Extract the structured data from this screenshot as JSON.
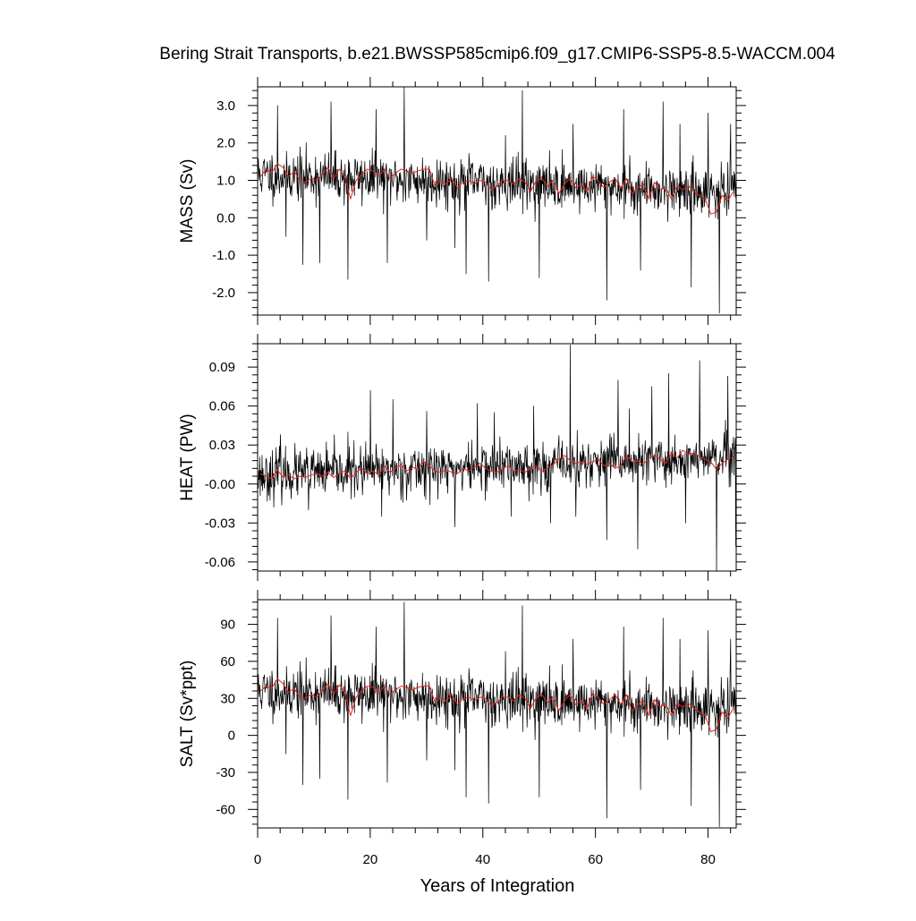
{
  "figure": {
    "title": "Bering Strait Transports, b.e21.BWSSP585cmip6.f09_g17.CMIP6-SSP5-8.5-WACCM.004",
    "xlabel": "Years of Integration"
  },
  "colors": {
    "raw_series": "#000000",
    "annual_mean_series": "#e8231f",
    "axes": "#000000",
    "background": "#ffffff"
  },
  "chart_data": [
    {
      "type": "line",
      "title": "",
      "ylabel": "MASS (Sv)",
      "xlabel": "",
      "xlim": [
        0,
        85
      ],
      "ylim": [
        -2.6,
        3.5
      ],
      "xticks": [
        0,
        20,
        40,
        60,
        80
      ],
      "xtick_labels": [
        "0",
        "20",
        "40",
        "60",
        "80"
      ],
      "yticks": [
        -2.0,
        -1.0,
        0.0,
        1.0,
        2.0,
        3.0
      ],
      "ytick_labels": [
        "-2.0",
        "-1.0",
        "0.0",
        "1.0",
        "2.0",
        "3.0"
      ],
      "grid": false,
      "series": [
        {
          "kind": "monthly",
          "color": "#000000",
          "x_start": 0.0417,
          "x_step": 0.0833,
          "mean_trend": [
            1.15,
            0.7
          ],
          "spread": 0.6,
          "spikes": [
            [
              3.5,
              3.0
            ],
            [
              5.0,
              -0.5
            ],
            [
              8.0,
              -1.25
            ],
            [
              11.0,
              -1.2
            ],
            [
              13.0,
              3.1
            ],
            [
              16.0,
              -1.65
            ],
            [
              21.0,
              2.9
            ],
            [
              23.0,
              -1.2
            ],
            [
              26.0,
              3.5
            ],
            [
              30.0,
              -0.6
            ],
            [
              35.0,
              -0.8
            ],
            [
              37.0,
              -1.5
            ],
            [
              41.0,
              -1.7
            ],
            [
              44.0,
              2.2
            ],
            [
              47.0,
              3.4
            ],
            [
              50.0,
              -1.6
            ],
            [
              56.0,
              2.5
            ],
            [
              62.0,
              -2.2
            ],
            [
              65.0,
              2.9
            ],
            [
              68.0,
              -1.4
            ],
            [
              72.0,
              3.1
            ],
            [
              75.0,
              2.5
            ],
            [
              77.0,
              -1.85
            ],
            [
              80.0,
              2.8
            ],
            [
              82.0,
              -2.55
            ],
            [
              84.0,
              2.5
            ]
          ],
          "seed": 11
        },
        {
          "kind": "annual_mean",
          "color": "#e8231f",
          "x": [
            0.5,
            1.5,
            2.5,
            3.5,
            4.5,
            5.5,
            6.5,
            7.5,
            8.5,
            9.5,
            10.5,
            11.5,
            12.5,
            13.5,
            14.5,
            15.5,
            16.5,
            17.5,
            18.5,
            19.5,
            20.5,
            21.5,
            22.5,
            23.5,
            24.5,
            25.5,
            26.5,
            27.5,
            28.5,
            29.5,
            30.5,
            31.5,
            32.5,
            33.5,
            34.5,
            35.5,
            36.5,
            37.5,
            38.5,
            39.5,
            40.5,
            41.5,
            42.5,
            43.5,
            44.5,
            45.5,
            46.5,
            47.5,
            48.5,
            49.5,
            50.5,
            51.5,
            52.5,
            53.5,
            54.5,
            55.5,
            56.5,
            57.5,
            58.5,
            59.5,
            60.5,
            61.5,
            62.5,
            63.5,
            64.5,
            65.5,
            66.5,
            67.5,
            68.5,
            69.5,
            70.5,
            71.5,
            72.5,
            73.5,
            74.5,
            75.5,
            76.5,
            77.5,
            78.5,
            79.5,
            80.5,
            81.5,
            82.5,
            83.5,
            84.5
          ],
          "values": [
            1.1,
            1.3,
            1.2,
            1.45,
            1.35,
            1.1,
            1.25,
            1.0,
            0.95,
            1.05,
            1.0,
            1.15,
            1.35,
            1.05,
            1.3,
            1.1,
            0.5,
            1.0,
            1.15,
            1.3,
            1.25,
            1.1,
            1.3,
            1.05,
            1.2,
            1.3,
            1.25,
            1.2,
            1.25,
            1.3,
            1.3,
            0.85,
            1.0,
            0.9,
            1.05,
            0.8,
            0.95,
            1.0,
            0.9,
            1.0,
            0.95,
            0.75,
            0.85,
            1.0,
            1.0,
            0.9,
            1.05,
            0.95,
            0.7,
            1.0,
            1.05,
            0.85,
            1.0,
            0.65,
            0.9,
            1.05,
            0.8,
            0.9,
            0.7,
            1.1,
            1.0,
            0.8,
            0.95,
            1.05,
            0.8,
            1.05,
            0.65,
            0.8,
            0.9,
            0.5,
            0.95,
            0.75,
            0.8,
            0.5,
            0.85,
            0.75,
            0.85,
            0.7,
            0.6,
            0.5,
            0.1,
            0.15,
            0.6,
            0.45,
            0.7
          ]
        }
      ]
    },
    {
      "type": "line",
      "title": "",
      "ylabel": "HEAT (PW)",
      "xlabel": "",
      "xlim": [
        0,
        85
      ],
      "ylim": [
        -0.067,
        0.108
      ],
      "xticks": [
        0,
        20,
        40,
        60,
        80
      ],
      "xtick_labels": [
        "0",
        "20",
        "40",
        "60",
        "80"
      ],
      "yticks": [
        -0.06,
        -0.03,
        0.0,
        0.03,
        0.06,
        0.09
      ],
      "ytick_labels": [
        "-0.06",
        "-0.03",
        "-0.00",
        "0.03",
        "0.06",
        "0.09"
      ],
      "grid": false,
      "series": [
        {
          "kind": "monthly",
          "color": "#000000",
          "x_start": 0.0417,
          "x_step": 0.0833,
          "mean_trend": [
            0.007,
            0.02
          ],
          "spread": 0.017,
          "spikes": [
            [
              4.0,
              0.038
            ],
            [
              9.0,
              -0.02
            ],
            [
              16.0,
              0.04
            ],
            [
              20.0,
              0.072
            ],
            [
              22.0,
              -0.025
            ],
            [
              24.0,
              0.065
            ],
            [
              30.0,
              0.056
            ],
            [
              35.0,
              -0.033
            ],
            [
              39.0,
              0.062
            ],
            [
              42.0,
              0.055
            ],
            [
              45.0,
              -0.025
            ],
            [
              49.0,
              0.06
            ],
            [
              52.0,
              -0.03
            ],
            [
              55.5,
              0.107
            ],
            [
              56.5,
              -0.025
            ],
            [
              62.0,
              -0.043
            ],
            [
              64.0,
              0.08
            ],
            [
              66.0,
              0.058
            ],
            [
              67.5,
              -0.05
            ],
            [
              70.0,
              0.075
            ],
            [
              73.0,
              0.085
            ],
            [
              76.0,
              -0.03
            ],
            [
              78.5,
              0.095
            ],
            [
              81.5,
              -0.068
            ],
            [
              83.5,
              0.083
            ],
            [
              85.0,
              -0.048
            ]
          ],
          "seed": 23
        },
        {
          "kind": "annual_mean",
          "color": "#e8231f",
          "x": [
            0.5,
            1.5,
            2.5,
            3.5,
            4.5,
            5.5,
            6.5,
            7.5,
            8.5,
            9.5,
            10.5,
            11.5,
            12.5,
            13.5,
            14.5,
            15.5,
            16.5,
            17.5,
            18.5,
            19.5,
            20.5,
            21.5,
            22.5,
            23.5,
            24.5,
            25.5,
            26.5,
            27.5,
            28.5,
            29.5,
            30.5,
            31.5,
            32.5,
            33.5,
            34.5,
            35.5,
            36.5,
            37.5,
            38.5,
            39.5,
            40.5,
            41.5,
            42.5,
            43.5,
            44.5,
            45.5,
            46.5,
            47.5,
            48.5,
            49.5,
            50.5,
            51.5,
            52.5,
            53.5,
            54.5,
            55.5,
            56.5,
            57.5,
            58.5,
            59.5,
            60.5,
            61.5,
            62.5,
            63.5,
            64.5,
            65.5,
            66.5,
            67.5,
            68.5,
            69.5,
            70.5,
            71.5,
            72.5,
            73.5,
            74.5,
            75.5,
            76.5,
            77.5,
            78.5,
            79.5,
            80.5,
            81.5,
            82.5,
            83.5,
            84.5
          ],
          "values": [
            0.008,
            0.006,
            0.004,
            0.011,
            0.005,
            0.007,
            0.004,
            0.006,
            0.005,
            0.007,
            0.008,
            0.006,
            0.009,
            0.005,
            0.008,
            0.01,
            0.004,
            0.009,
            0.012,
            0.008,
            0.01,
            0.007,
            0.014,
            0.009,
            0.012,
            0.015,
            0.01,
            0.013,
            0.011,
            0.017,
            0.014,
            0.01,
            0.009,
            0.011,
            0.009,
            0.008,
            0.012,
            0.01,
            0.013,
            0.016,
            0.012,
            0.01,
            0.009,
            0.012,
            0.014,
            0.01,
            0.011,
            0.009,
            0.012,
            0.014,
            0.01,
            0.012,
            0.015,
            0.019,
            0.022,
            0.018,
            0.016,
            0.017,
            0.015,
            0.017,
            0.019,
            0.014,
            0.016,
            0.012,
            0.014,
            0.022,
            0.017,
            0.018,
            0.015,
            0.02,
            0.022,
            0.019,
            0.016,
            0.024,
            0.02,
            0.026,
            0.023,
            0.024,
            0.021,
            0.019,
            0.017,
            0.011,
            0.016,
            0.019,
            0.021
          ]
        }
      ]
    },
    {
      "type": "line",
      "title": "",
      "ylabel": "SALT (Sv*ppt)",
      "xlabel": "Years of Integration",
      "xlim": [
        0,
        85
      ],
      "ylim": [
        -75,
        110
      ],
      "xticks": [
        0,
        20,
        40,
        60,
        80
      ],
      "xtick_labels": [
        "0",
        "20",
        "40",
        "60",
        "80"
      ],
      "yticks": [
        -60,
        -30,
        0,
        30,
        60,
        90
      ],
      "ytick_labels": [
        "-60",
        "-30",
        "0",
        "30",
        "60",
        "90"
      ],
      "grid": false,
      "series": [
        {
          "kind": "monthly",
          "color": "#000000",
          "x_start": 0.0417,
          "x_step": 0.0833,
          "mean_trend": [
            36,
            22
          ],
          "spread": 19,
          "spikes": [
            [
              3.5,
              95
            ],
            [
              5.0,
              -15
            ],
            [
              8.0,
              -40
            ],
            [
              11.0,
              -35
            ],
            [
              13.0,
              97
            ],
            [
              16.0,
              -52
            ],
            [
              21.0,
              88
            ],
            [
              23.0,
              -38
            ],
            [
              26.0,
              108
            ],
            [
              30.0,
              -20
            ],
            [
              35.0,
              -28
            ],
            [
              37.0,
              -50
            ],
            [
              41.0,
              -55
            ],
            [
              44.0,
              68
            ],
            [
              47.0,
              105
            ],
            [
              50.0,
              -50
            ],
            [
              56.0,
              78
            ],
            [
              62.0,
              -67
            ],
            [
              65.0,
              88
            ],
            [
              68.0,
              -44
            ],
            [
              72.0,
              95
            ],
            [
              75.0,
              78
            ],
            [
              77.0,
              -57
            ],
            [
              80.0,
              85
            ],
            [
              82.0,
              -74
            ],
            [
              84.0,
              78
            ]
          ],
          "seed": 11
        },
        {
          "kind": "annual_mean",
          "color": "#e8231f",
          "x": [
            0.5,
            1.5,
            2.5,
            3.5,
            4.5,
            5.5,
            6.5,
            7.5,
            8.5,
            9.5,
            10.5,
            11.5,
            12.5,
            13.5,
            14.5,
            15.5,
            16.5,
            17.5,
            18.5,
            19.5,
            20.5,
            21.5,
            22.5,
            23.5,
            24.5,
            25.5,
            26.5,
            27.5,
            28.5,
            29.5,
            30.5,
            31.5,
            32.5,
            33.5,
            34.5,
            35.5,
            36.5,
            37.5,
            38.5,
            39.5,
            40.5,
            41.5,
            42.5,
            43.5,
            44.5,
            45.5,
            46.5,
            47.5,
            48.5,
            49.5,
            50.5,
            51.5,
            52.5,
            53.5,
            54.5,
            55.5,
            56.5,
            57.5,
            58.5,
            59.5,
            60.5,
            61.5,
            62.5,
            63.5,
            64.5,
            65.5,
            66.5,
            67.5,
            68.5,
            69.5,
            70.5,
            71.5,
            72.5,
            73.5,
            74.5,
            75.5,
            76.5,
            77.5,
            78.5,
            79.5,
            80.5,
            81.5,
            82.5,
            83.5,
            84.5
          ],
          "values": [
            36,
            40,
            38,
            46,
            42,
            35,
            38,
            31,
            30,
            33,
            31,
            36,
            42,
            33,
            41,
            35,
            16,
            31,
            36,
            40,
            39,
            34,
            40,
            33,
            37,
            40,
            39,
            37,
            39,
            40,
            40,
            27,
            31,
            28,
            33,
            25,
            30,
            31,
            28,
            31,
            30,
            24,
            27,
            31,
            31,
            28,
            33,
            30,
            22,
            31,
            33,
            27,
            31,
            20,
            28,
            33,
            25,
            28,
            22,
            34,
            31,
            25,
            29,
            33,
            25,
            33,
            20,
            25,
            28,
            16,
            29,
            23,
            25,
            16,
            26,
            23,
            26,
            22,
            19,
            16,
            3,
            5,
            19,
            14,
            22
          ]
        }
      ]
    }
  ]
}
